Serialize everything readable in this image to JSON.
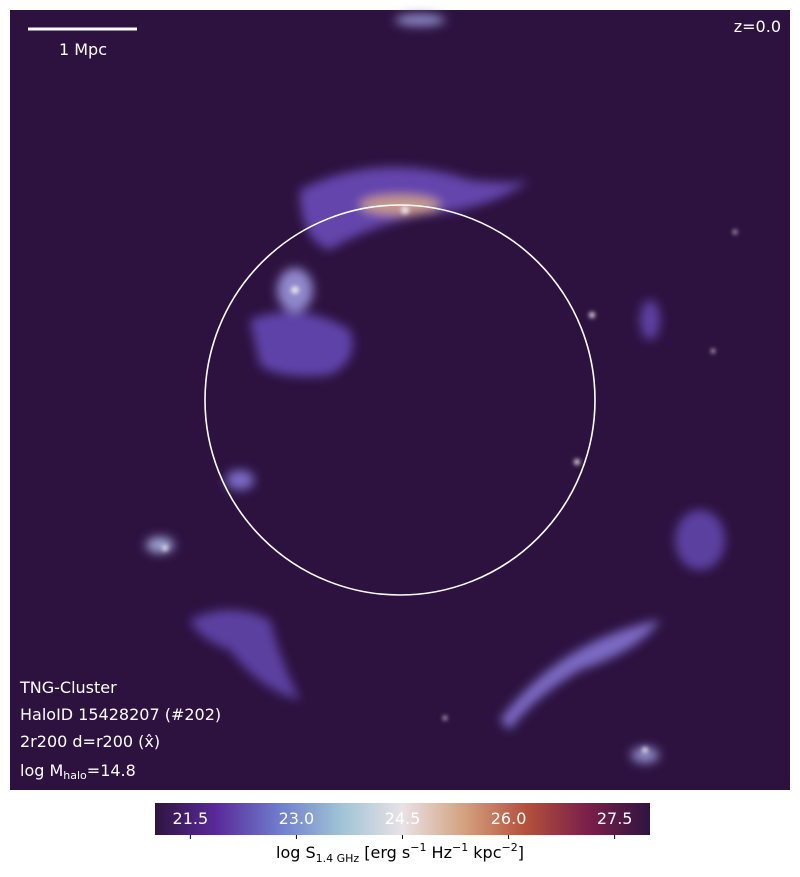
{
  "panel": {
    "scale_label": "1 Mpc",
    "redshift": "z=0.0",
    "simulation": "TNG-Cluster",
    "halo_id": "HaloID 15428207 (#202)",
    "projection": "2r200 d=r200 (x̂)",
    "mass": [
      "log M",
      "halo",
      "=14.8"
    ]
  },
  "colorbar": {
    "lim": [
      21,
      28
    ],
    "ticks": [
      21.5,
      {
        "value": 23,
        "label": "23.0"
      },
      24.5,
      {
        "value": 26,
        "label": "26.0"
      },
      27.5
    ],
    "colors": [
      "#2f1441",
      "#5a2a9a",
      "#6f7ccc",
      "#9fc3d6",
      "#e9e2e6",
      "#d3a17f",
      "#b4503a",
      "#7a1f4a",
      "#2f1441"
    ],
    "label": [
      "log S",
      "1.4 GHz",
      " [erg s",
      "−1",
      " Hz",
      "−1",
      " kpc",
      "−2",
      "]"
    ]
  }
}
